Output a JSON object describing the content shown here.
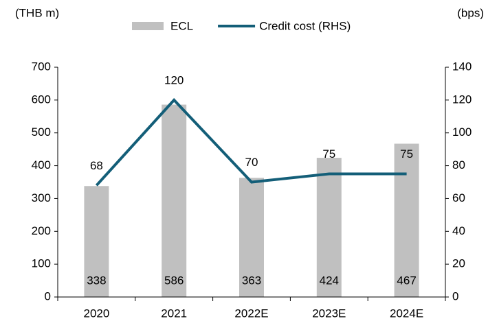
{
  "chart_data": {
    "type": "bar_line",
    "y_label": "(THB m)",
    "y2_label": "(bps)",
    "categories": [
      "2020",
      "2021",
      "2022E",
      "2023E",
      "2024E"
    ],
    "series": [
      {
        "name": "ECL",
        "type": "bar",
        "color": "#c0c0c0",
        "values": [
          338,
          586,
          363,
          424,
          467
        ]
      },
      {
        "name": "Credit cost (RHS)",
        "type": "line",
        "axis": "y2",
        "color": "#135e78",
        "values": [
          68,
          120,
          70,
          75,
          75
        ]
      }
    ],
    "ylim": [
      0,
      700
    ],
    "yticks": [
      0,
      100,
      200,
      300,
      400,
      500,
      600,
      700
    ],
    "y2lim": [
      0,
      140
    ],
    "y2ticks": [
      0,
      20,
      40,
      60,
      80,
      100,
      120,
      140
    ],
    "legend": "top"
  }
}
